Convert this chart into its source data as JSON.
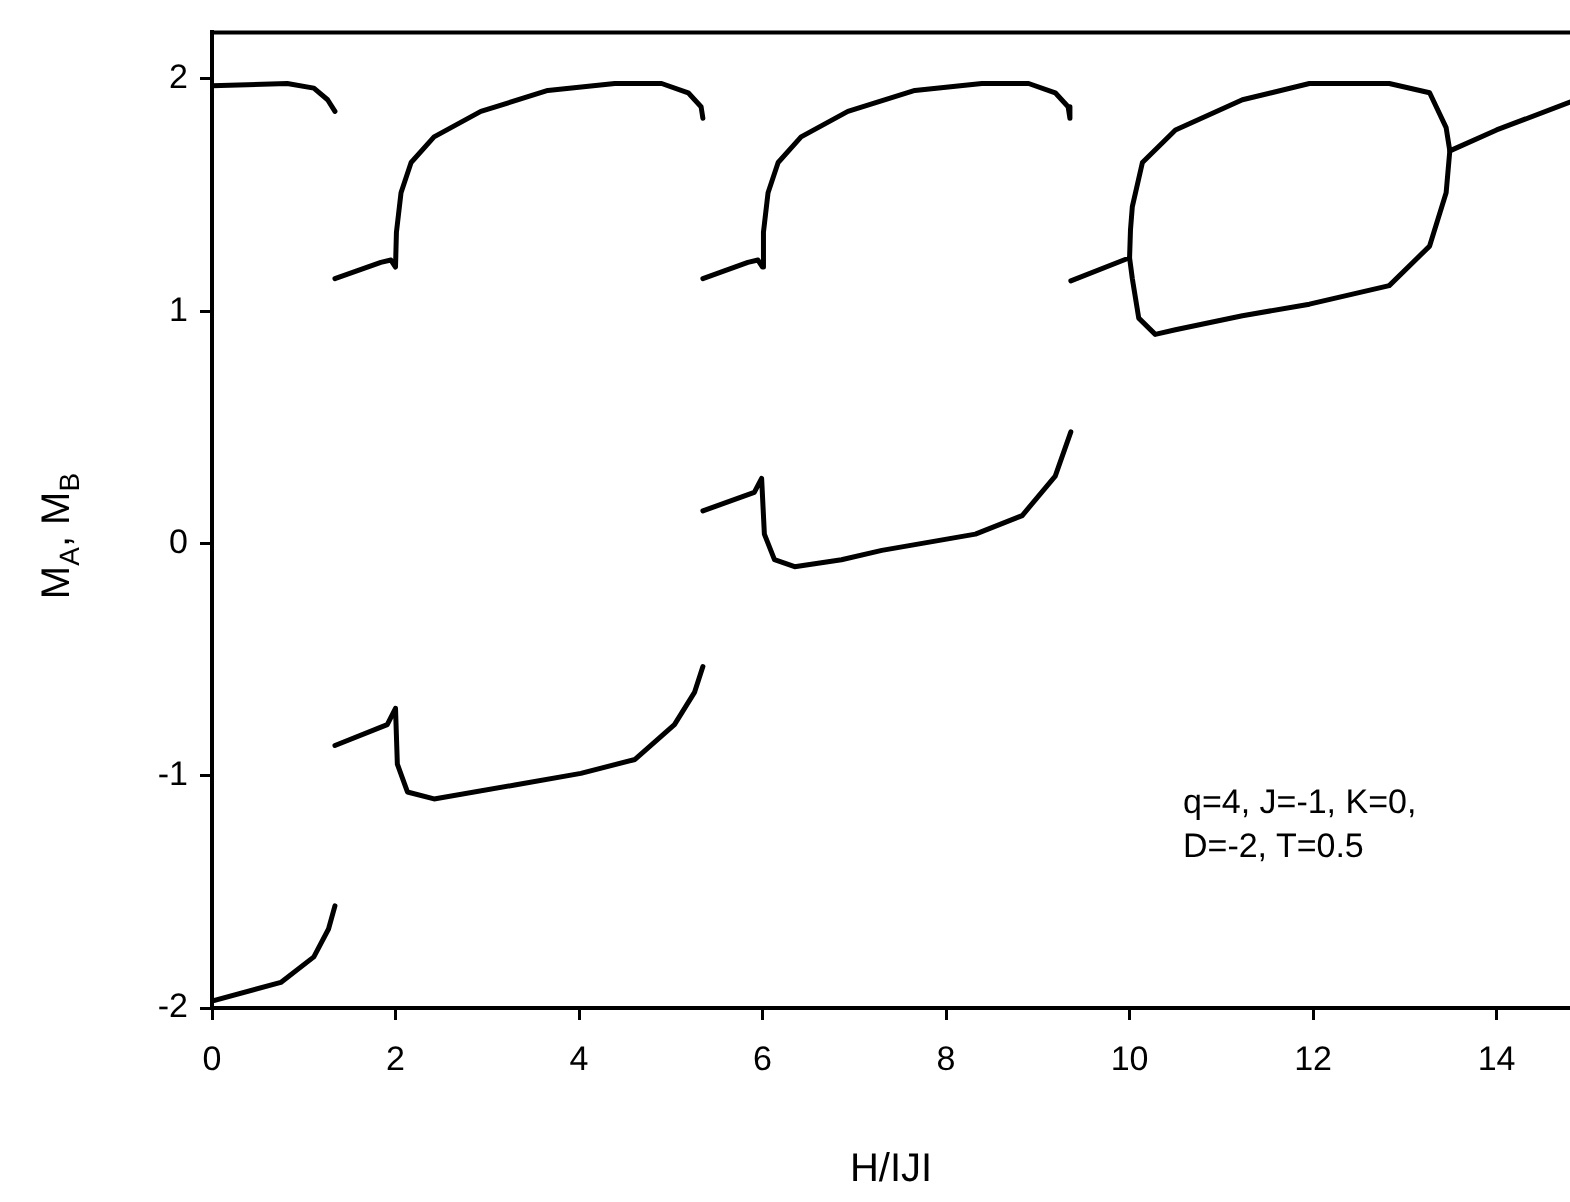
{
  "chart_data": {
    "type": "line",
    "xlabel": "H/IJI",
    "ylabel": "M$_{A}$, M$_{B}$",
    "xlim": [
      0,
      14.8
    ],
    "ylim": [
      -2,
      2.2
    ],
    "xticks": [
      0,
      2,
      4,
      6,
      8,
      10,
      12,
      14
    ],
    "yticks": [
      -2,
      -1,
      0,
      1,
      2
    ],
    "annotations": [
      "q=4, J=-1, K=0,\nD=-2, T=0.5"
    ],
    "series": [
      {
        "color": "#000000",
        "x": [
          0,
          0.82,
          1.11,
          1.26,
          1.34
        ],
        "values": [
          1.97,
          1.98,
          1.96,
          1.91,
          1.86
        ]
      },
      {
        "color": "#000000",
        "x": [
          0,
          0.75,
          1.11,
          1.27,
          1.34
        ],
        "values": [
          -1.97,
          -1.89,
          -1.78,
          -1.66,
          -1.56
        ]
      },
      {
        "color": "#000000",
        "x": [
          1.34,
          1.84,
          1.95,
          2.0,
          2.01,
          2.06,
          2.17,
          2.42,
          2.93,
          3.66,
          4.39,
          4.9,
          5.19,
          5.33,
          5.35
        ],
        "values": [
          1.14,
          1.21,
          1.22,
          1.19,
          1.34,
          1.51,
          1.64,
          1.75,
          1.86,
          1.95,
          1.98,
          1.98,
          1.94,
          1.88,
          1.83
        ]
      },
      {
        "color": "#000000",
        "x": [
          1.34,
          1.91,
          2.0,
          2.02,
          2.13,
          2.42,
          3.3,
          4.02,
          4.61,
          5.04,
          5.26,
          5.35
        ],
        "values": [
          -0.87,
          -0.78,
          -0.71,
          -0.95,
          -1.07,
          -1.1,
          -1.04,
          -0.99,
          -0.93,
          -0.78,
          -0.64,
          -0.53
        ]
      },
      {
        "color": "#000000",
        "x": [
          5.35,
          5.84,
          5.95,
          6.0,
          6.01,
          6.06,
          6.17,
          6.42,
          6.93,
          7.66,
          8.39,
          8.9,
          9.19,
          9.33,
          9.35
        ],
        "values": [
          1.14,
          1.21,
          1.22,
          1.19,
          1.34,
          1.51,
          1.64,
          1.75,
          1.86,
          1.95,
          1.98,
          1.98,
          1.94,
          1.88,
          1.83
        ]
      },
      {
        "color": "#000000",
        "x": [
          5.35,
          5.91,
          5.99,
          6.02,
          6.13,
          6.35,
          6.86,
          7.3,
          8.32,
          8.83,
          9.19,
          9.36
        ],
        "values": [
          0.14,
          0.22,
          0.28,
          0.04,
          -0.07,
          -0.1,
          -0.07,
          -0.03,
          0.04,
          0.12,
          0.29,
          0.48
        ]
      },
      {
        "color": "#000000",
        "x": [
          9.36,
          10.0,
          10.01,
          10.03,
          10.14,
          10.5,
          11.23,
          11.96,
          12.83,
          13.27,
          13.45,
          13.49,
          14.0,
          14.8
        ],
        "values": [
          1.13,
          1.23,
          1.35,
          1.45,
          1.64,
          1.78,
          1.91,
          1.98,
          1.98,
          1.94,
          1.79,
          1.69,
          1.78,
          1.9
        ]
      },
      {
        "color": "#000000",
        "x": [
          10.0,
          10.03,
          10.1,
          10.28,
          10.5,
          11.23,
          11.96,
          12.83,
          13.27,
          13.45,
          13.49
        ],
        "values": [
          1.23,
          1.14,
          0.97,
          0.9,
          0.92,
          0.98,
          1.03,
          1.11,
          1.28,
          1.51,
          1.69
        ]
      }
    ]
  }
}
